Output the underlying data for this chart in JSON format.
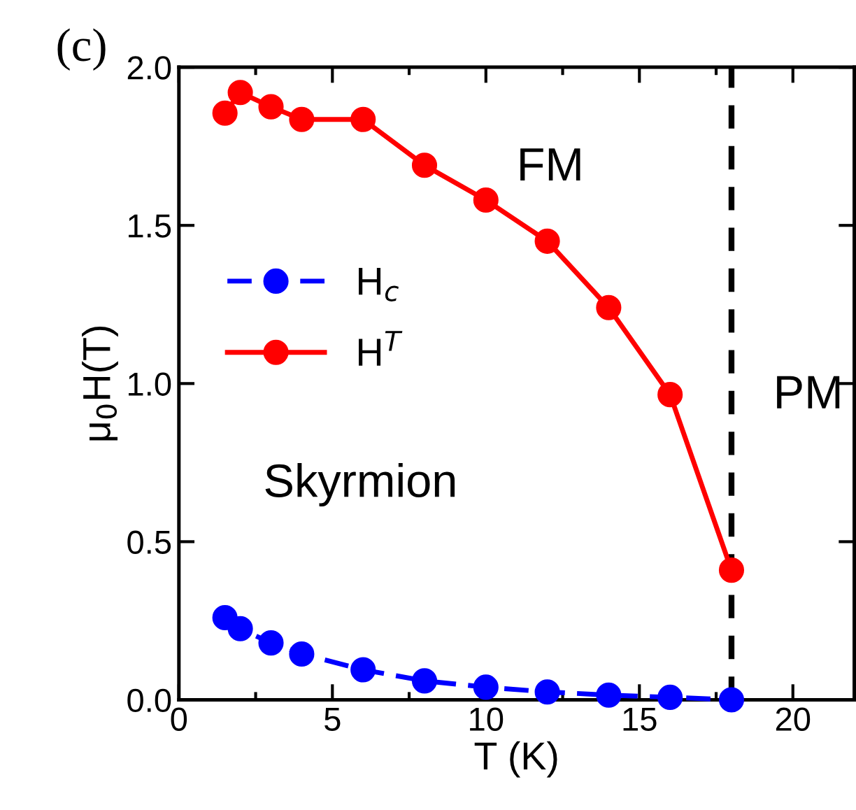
{
  "chart_data": {
    "type": "line",
    "title": "(c)",
    "xlabel": "T (K)",
    "ylabel": "μ$_{0}$H(T)",
    "annotations": [
      "FM",
      "Skyrmion",
      "PM"
    ],
    "x": [
      1.5,
      2,
      3,
      4,
      6,
      8,
      10,
      12,
      14,
      16,
      18
    ],
    "series": [
      {
        "name": "H$_{c}$",
        "color": "#0000ff",
        "line_style": "dashed",
        "values": [
          0.26,
          0.225,
          0.18,
          0.145,
          0.095,
          0.06,
          0.04,
          0.025,
          0.015,
          0.008,
          0.0
        ]
      },
      {
        "name": "H$^{T}$",
        "color": "#ff0000",
        "line_style": "solid",
        "values": [
          1.855,
          1.92,
          1.875,
          1.835,
          1.835,
          1.69,
          1.58,
          1.45,
          1.24,
          0.965,
          0.41
        ]
      }
    ],
    "xlim": [
      0,
      22
    ],
    "xticks": [
      0,
      5,
      10,
      15,
      20
    ],
    "ylim": [
      0,
      2.0
    ],
    "yticks": [
      {
        "value": 0,
        "label": "0.0"
      },
      0.5,
      {
        "value": 1,
        "label": "1.0"
      },
      1.5,
      {
        "value": 2,
        "label": "2.0"
      }
    ],
    "ref_lines": [
      {
        "axis": "x",
        "value": 18,
        "color": "#000000",
        "line_style": "dashed"
      }
    ],
    "marker": "circle",
    "legend": "left",
    "grid": false
  }
}
